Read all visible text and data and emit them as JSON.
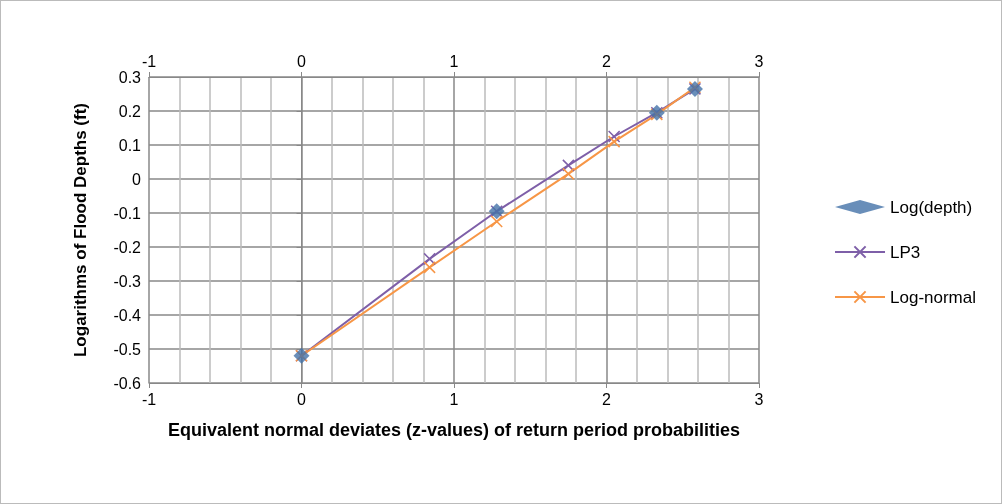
{
  "chart_data": {
    "type": "line",
    "xlabel": "Equivalent normal deviates (z-values) of return period probabilities",
    "ylabel": "Logarithms of Flood Depths (ft)",
    "xlim": [
      -1,
      3
    ],
    "xticks": [
      -1,
      0,
      1,
      2,
      3
    ],
    "x2lim": [
      -1,
      3
    ],
    "x2ticks": [
      -1,
      0,
      1,
      2,
      3
    ],
    "ylim": [
      -0.6,
      0.3
    ],
    "yticks": [
      -0.6,
      -0.5,
      -0.4,
      -0.3,
      -0.2,
      -0.1,
      0,
      0.1,
      0.2,
      0.3
    ],
    "grid": true,
    "legend": "right",
    "series": [
      {
        "name": "Log(depth)",
        "type": "scatter",
        "marker": "diamond",
        "color": "#4472a8",
        "x": [
          0,
          1.28,
          2.33,
          2.58
        ],
        "values": [
          -0.52,
          -0.095,
          0.195,
          0.265
        ]
      },
      {
        "name": "LP3",
        "type": "line",
        "marker": "cross",
        "color": "#7e5fa8",
        "x": [
          0,
          0.84,
          1.28,
          1.75,
          2.05,
          2.33,
          2.58
        ],
        "values": [
          -0.52,
          -0.235,
          -0.095,
          0.04,
          0.125,
          0.195,
          0.265
        ]
      },
      {
        "name": "Log-normal",
        "type": "line",
        "marker": "cross",
        "color": "#f79646",
        "x": [
          0,
          0.84,
          1.28,
          1.75,
          2.05,
          2.33,
          2.58
        ],
        "values": [
          -0.52,
          -0.26,
          -0.125,
          0.015,
          0.11,
          0.19,
          0.27
        ]
      }
    ]
  }
}
